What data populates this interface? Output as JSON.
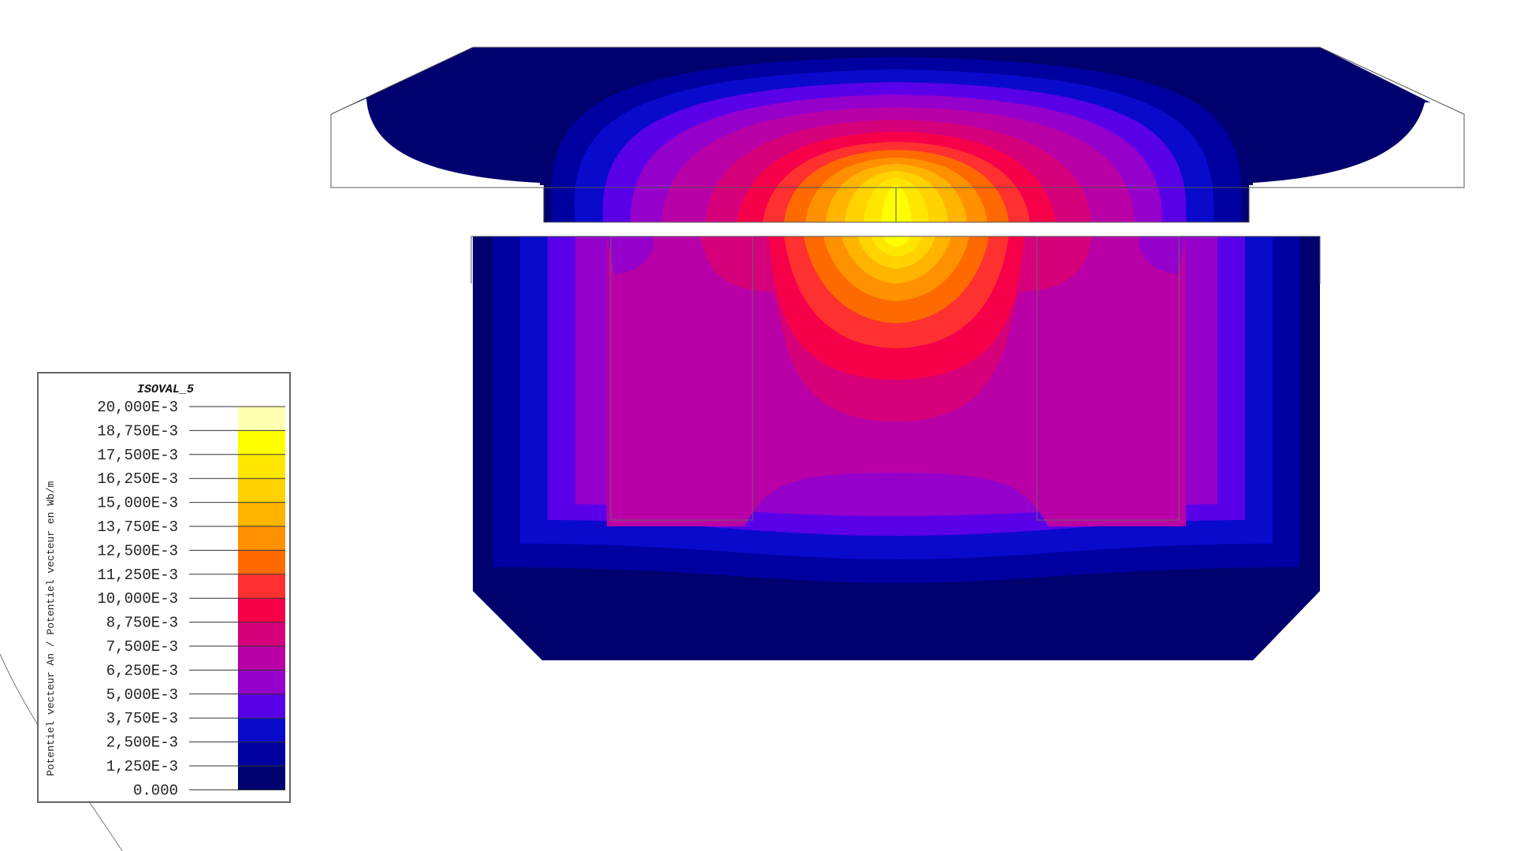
{
  "legend": {
    "title": "ISOVAL_5",
    "axis_label": "Potentiel vecteur An / Potentiel vecteur en Wb/m",
    "levels": [
      {
        "label": "20,000E-3",
        "value": 0.02,
        "color": "#FFFFB0"
      },
      {
        "label": "18,750E-3",
        "value": 0.01875,
        "color": "#FFFF00"
      },
      {
        "label": "17,500E-3",
        "value": 0.0175,
        "color": "#FFE600"
      },
      {
        "label": "16,250E-3",
        "value": 0.01625,
        "color": "#FFD200"
      },
      {
        "label": "15,000E-3",
        "value": 0.015,
        "color": "#FFB400"
      },
      {
        "label": "13,750E-3",
        "value": 0.01375,
        "color": "#FF9100"
      },
      {
        "label": "12,500E-3",
        "value": 0.0125,
        "color": "#FF6A00"
      },
      {
        "label": "11,250E-3",
        "value": 0.01125,
        "color": "#FF3030"
      },
      {
        "label": "10,000E-3",
        "value": 0.01,
        "color": "#F7004A"
      },
      {
        "label": "8,750E-3",
        "value": 0.00875,
        "color": "#D5007A"
      },
      {
        "label": "7,500E-3",
        "value": 0.0075,
        "color": "#B900A6"
      },
      {
        "label": "6,250E-3",
        "value": 0.00625,
        "color": "#9600CB"
      },
      {
        "label": "5,000E-3",
        "value": 0.005,
        "color": "#5A00E8"
      },
      {
        "label": "3,750E-3",
        "value": 0.00375,
        "color": "#0A0ACC"
      },
      {
        "label": "2,500E-3",
        "value": 0.0025,
        "color": "#0000A0"
      },
      {
        "label": "1,250E-3",
        "value": 0.00125,
        "color": "#00006E"
      },
      {
        "label": "0.000",
        "value": 0,
        "color": "#00006E"
      }
    ]
  },
  "colors": {
    "outline": "#555555",
    "background": "#FFFFFF"
  }
}
